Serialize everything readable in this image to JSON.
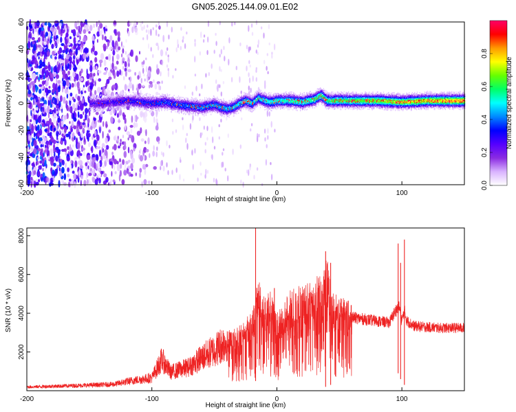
{
  "title": "GN05.2025.144.09.01.E02",
  "chart_data": [
    {
      "type": "heatmap",
      "name": "spectrogram",
      "xlabel": "Height of straight line (km)",
      "ylabel": "Frequency (Hz)",
      "xlim": [
        -200,
        150
      ],
      "ylim": [
        -60,
        60
      ],
      "xticks": [
        -200,
        -100,
        0,
        100
      ],
      "yticks": [
        -60,
        -40,
        -20,
        0,
        20,
        40,
        60
      ],
      "colorbar": {
        "label": "Normalized spectral amplitude",
        "range": [
          0,
          1
        ],
        "ticks": [
          0.0,
          0.2,
          0.4,
          0.6,
          0.8
        ],
        "tick_labels": [
          "0.0",
          "0.2",
          "0.4",
          "0.6",
          "0.8"
        ],
        "colors": [
          "#ffffff",
          "#d9b3ff",
          "#8a2be2",
          "#5500ff",
          "#0000ff",
          "#0088ff",
          "#00ffff",
          "#00ff66",
          "#66ff00",
          "#ffff00",
          "#ff9900",
          "#ff0000",
          "#ff0066"
        ]
      },
      "ridge_profile": {
        "x": [
          -150,
          -140,
          -130,
          -120,
          -110,
          -100,
          -90,
          -80,
          -70,
          -60,
          -50,
          -45,
          -40,
          -35,
          -30,
          -25,
          -20,
          -15,
          -10,
          -5,
          0,
          10,
          20,
          30,
          35,
          40,
          50,
          60,
          80,
          100,
          120,
          150
        ],
        "y": [
          0,
          0,
          1,
          2,
          1,
          0,
          1,
          -1,
          -2,
          -3,
          -1,
          -3,
          -4,
          -3,
          0,
          2,
          0,
          4,
          2,
          1,
          2,
          2,
          1,
          3,
          6,
          2,
          2,
          2,
          2,
          1,
          2,
          2
        ]
      }
    },
    {
      "type": "line",
      "name": "snr",
      "xlabel": "Height of straight line (km)",
      "ylabel": "SNR (10 * v/v)",
      "xlim": [
        -200,
        150
      ],
      "ylim": [
        0,
        8400
      ],
      "xticks": [
        -200,
        -100,
        0,
        100
      ],
      "yticks": [
        2000,
        4000,
        6000,
        8000
      ],
      "color": "#ee2222",
      "envelope": {
        "x": [
          -200,
          -150,
          -130,
          -120,
          -100,
          -92,
          -85,
          -70,
          -60,
          -50,
          -40,
          -30,
          -25,
          -20,
          -17,
          -15,
          -10,
          -5,
          0,
          5,
          10,
          20,
          30,
          38,
          40,
          42,
          45,
          50,
          60,
          70,
          80,
          90,
          95,
          98,
          100,
          102,
          104,
          110,
          120,
          130,
          140,
          150
        ],
        "y": [
          200,
          300,
          350,
          500,
          700,
          1700,
          1000,
          1300,
          1800,
          2200,
          2700,
          3000,
          3300,
          3800,
          4000,
          5500,
          4200,
          4500,
          3500,
          4000,
          4500,
          4800,
          5000,
          5600,
          6000,
          5400,
          4500,
          4300,
          4200,
          4100,
          4000,
          3900,
          4600,
          4800,
          4000,
          4600,
          4000,
          3700,
          3650,
          3600,
          3600,
          3600
        ]
      },
      "spikes": [
        {
          "x": -17,
          "y": 8400,
          "min": 500
        },
        {
          "x": -11,
          "y": 4200,
          "min": 1200
        },
        {
          "x": -2,
          "y": 5300,
          "min": 900
        },
        {
          "x": 39,
          "y": 7200,
          "min": 200
        },
        {
          "x": 43,
          "y": 6600,
          "min": 300
        },
        {
          "x": 97,
          "y": 7600,
          "min": 900
        },
        {
          "x": 99,
          "y": 6600,
          "min": 600
        },
        {
          "x": 102,
          "y": 7800,
          "min": 300
        }
      ]
    }
  ]
}
